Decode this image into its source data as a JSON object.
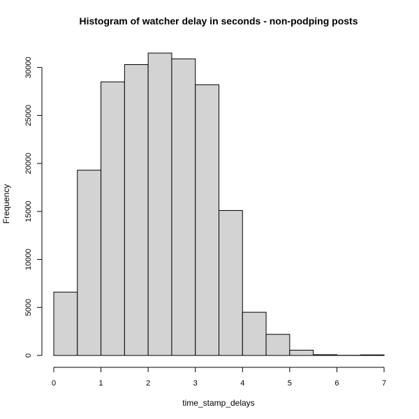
{
  "colors": {
    "bar_fill": "#d3d3d3",
    "bar_stroke": "#000000",
    "text": "#000000",
    "background": "#ffffff"
  },
  "chart_data": {
    "type": "bar",
    "subtype": "histogram",
    "title": "Histogram of watcher delay in seconds - non-podping posts",
    "xlabel": "time_stamp_delays",
    "ylabel": "Frequency",
    "bin_edges": [
      0,
      0.5,
      1,
      1.5,
      2,
      2.5,
      3,
      3.5,
      4,
      4.5,
      5,
      5.5,
      6,
      6.5,
      7
    ],
    "values": [
      6600,
      19300,
      28500,
      30300,
      31500,
      30900,
      28200,
      15100,
      4500,
      2200,
      550,
      80,
      20,
      60
    ],
    "xlim": [
      0,
      7
    ],
    "ylim": [
      0,
      31500
    ],
    "x_ticks": [
      0,
      1,
      2,
      3,
      4,
      5,
      6,
      7
    ],
    "x_tick_labels": [
      "0",
      "1",
      "2",
      "3",
      "4",
      "5",
      "6",
      "7"
    ],
    "y_ticks": [
      0,
      5000,
      10000,
      15000,
      20000,
      25000,
      30000
    ],
    "y_tick_labels": [
      "0",
      "5000",
      "10000",
      "15000",
      "20000",
      "25000",
      "30000"
    ],
    "grid": false,
    "legend": "none"
  }
}
